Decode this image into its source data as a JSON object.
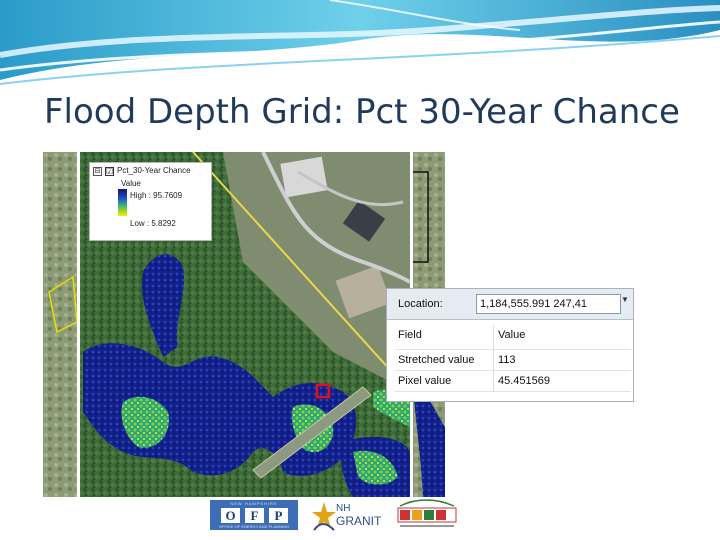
{
  "slide": {
    "title": "Flood Depth Grid: Pct 30-Year Chance"
  },
  "legend": {
    "expand_glyph": "⊟",
    "checked_glyph": "☑",
    "layer_name": "Pct_30-Year Chance",
    "value_label": "Value",
    "high_label": "High : 95.7609",
    "low_label": "Low : 5.8292",
    "ramp_colors": [
      "#0d1a78",
      "#2540b5",
      "#2aa0a0",
      "#7ed03a",
      "#f4f000"
    ]
  },
  "identify": {
    "location_label": "Location:",
    "location_value": "1,184,555.991  247,41",
    "dropdown_glyph": "▼",
    "columns": [
      "Field",
      "Value"
    ],
    "rows": [
      {
        "field": "Stretched value",
        "value": "113"
      },
      {
        "field": "Pixel value",
        "value": "45.451569"
      }
    ]
  },
  "logos": {
    "ofp_top": "NEW HAMPSHIRE",
    "ofp_letters": [
      "O",
      "F",
      "P"
    ],
    "ofp_bottom": "OFFICE OF ENERGY AND PLANNING",
    "nh_line1": "NH",
    "nh_line2": "GRANIT"
  },
  "colors": {
    "title": "#1f3a5a",
    "flood_deep": "#0d1a78",
    "flood_mid": "#2540b5",
    "flood_shallow": "#7ed03a",
    "flood_edge": "#f4f000",
    "marker": "#e0101a"
  }
}
